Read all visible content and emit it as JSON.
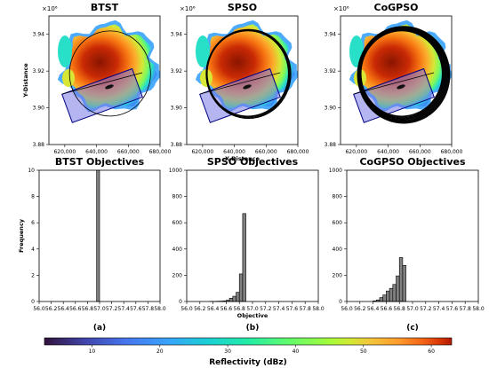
{
  "chart_data": [
    {
      "type": "heatmap",
      "title": "BTST",
      "xlabel": "",
      "ylabel": "Y-Distance",
      "y_offset_label": "×10⁶",
      "xlim": [
        610000,
        680000
      ],
      "ylim": [
        3.88,
        3.95
      ],
      "xticks": [
        "620,000",
        "640,000",
        "660,000",
        "680,000"
      ],
      "yticks": [
        "3.88",
        "3.90",
        "3.92",
        "3.94"
      ],
      "ellipse_rings": 1
    },
    {
      "type": "heatmap",
      "title": "SPSO",
      "xlabel": "X-Distance",
      "ylabel": "",
      "y_offset_label": "×10⁶",
      "xlim": [
        610000,
        680000
      ],
      "ylim": [
        3.88,
        3.95
      ],
      "xticks": [
        "620,000",
        "640,000",
        "660,000",
        "680,000"
      ],
      "yticks": [
        "3.88",
        "3.90",
        "3.92",
        "3.94"
      ],
      "ellipse_rings": 6
    },
    {
      "type": "heatmap",
      "title": "CoGPSO",
      "xlabel": "",
      "ylabel": "",
      "y_offset_label": "×10⁶",
      "xlim": [
        610000,
        680000
      ],
      "ylim": [
        3.88,
        3.95
      ],
      "xticks": [
        "620,000",
        "640,000",
        "660,000",
        "680,000"
      ],
      "yticks": [
        "3.88",
        "3.90",
        "3.92",
        "3.94"
      ],
      "ellipse_rings": 16
    },
    {
      "type": "bar",
      "title": "BTST Objectives",
      "xlabel": "",
      "ylabel": "Frequency",
      "xlim": [
        56.0,
        58.0
      ],
      "ylim": [
        0,
        10
      ],
      "xticks": [
        "56.0",
        "56.2",
        "56.4",
        "56.6",
        "56.8",
        "57.0",
        "57.2",
        "57.4",
        "57.6",
        "57.8",
        "58.0"
      ],
      "yticks": [
        "0",
        "2",
        "4",
        "6",
        "8",
        "10"
      ],
      "bin_width": 0.05,
      "bins": [
        [
          56.95,
          10
        ]
      ]
    },
    {
      "type": "bar",
      "title": "SPSO Objectives",
      "xlabel": "Objective",
      "ylabel": "",
      "xlim": [
        56.0,
        58.0
      ],
      "ylim": [
        0,
        1000
      ],
      "xticks": [
        "56.0",
        "56.2",
        "56.4",
        "56.6",
        "56.8",
        "57.0",
        "57.2",
        "57.4",
        "57.6",
        "57.8",
        "58.0"
      ],
      "yticks": [
        "0",
        "200",
        "400",
        "600",
        "800",
        "1000"
      ],
      "bin_width": 0.05,
      "bins": [
        [
          56.35,
          1
        ],
        [
          56.4,
          1
        ],
        [
          56.45,
          2
        ],
        [
          56.5,
          3
        ],
        [
          56.55,
          5
        ],
        [
          56.6,
          10
        ],
        [
          56.65,
          25
        ],
        [
          56.7,
          40
        ],
        [
          56.75,
          70
        ],
        [
          56.8,
          210
        ],
        [
          56.85,
          670
        ]
      ]
    },
    {
      "type": "bar",
      "title": "CoGPSO Objectives",
      "xlabel": "",
      "ylabel": "",
      "xlim": [
        56.0,
        58.0
      ],
      "ylim": [
        0,
        1000
      ],
      "xticks": [
        "56.0",
        "56.2",
        "56.4",
        "56.6",
        "56.8",
        "57.0",
        "57.2",
        "57.4",
        "57.6",
        "57.8",
        "58.0"
      ],
      "yticks": [
        "0",
        "200",
        "400",
        "600",
        "800",
        "1000"
      ],
      "bin_width": 0.05,
      "bins": [
        [
          56.4,
          5
        ],
        [
          56.45,
          12
        ],
        [
          56.5,
          30
        ],
        [
          56.55,
          50
        ],
        [
          56.6,
          80
        ],
        [
          56.65,
          100
        ],
        [
          56.7,
          130
        ],
        [
          56.75,
          195
        ],
        [
          56.8,
          335
        ],
        [
          56.85,
          275
        ]
      ]
    }
  ],
  "panel_labels": [
    "(a)",
    "(b)",
    "(c)"
  ],
  "colorbar": {
    "label": "Reflectivity (dBz)",
    "range": [
      3,
      63
    ],
    "ticks": [
      "10",
      "20",
      "30",
      "40",
      "50",
      "60"
    ],
    "tick_values": [
      10,
      20,
      30,
      40,
      50,
      60
    ],
    "colormap": "turbo"
  },
  "colors": {
    "bar_fill": "#808080",
    "bar_edge": "#000000",
    "box_fill": "#7878e6",
    "box_edge": "#000080"
  }
}
